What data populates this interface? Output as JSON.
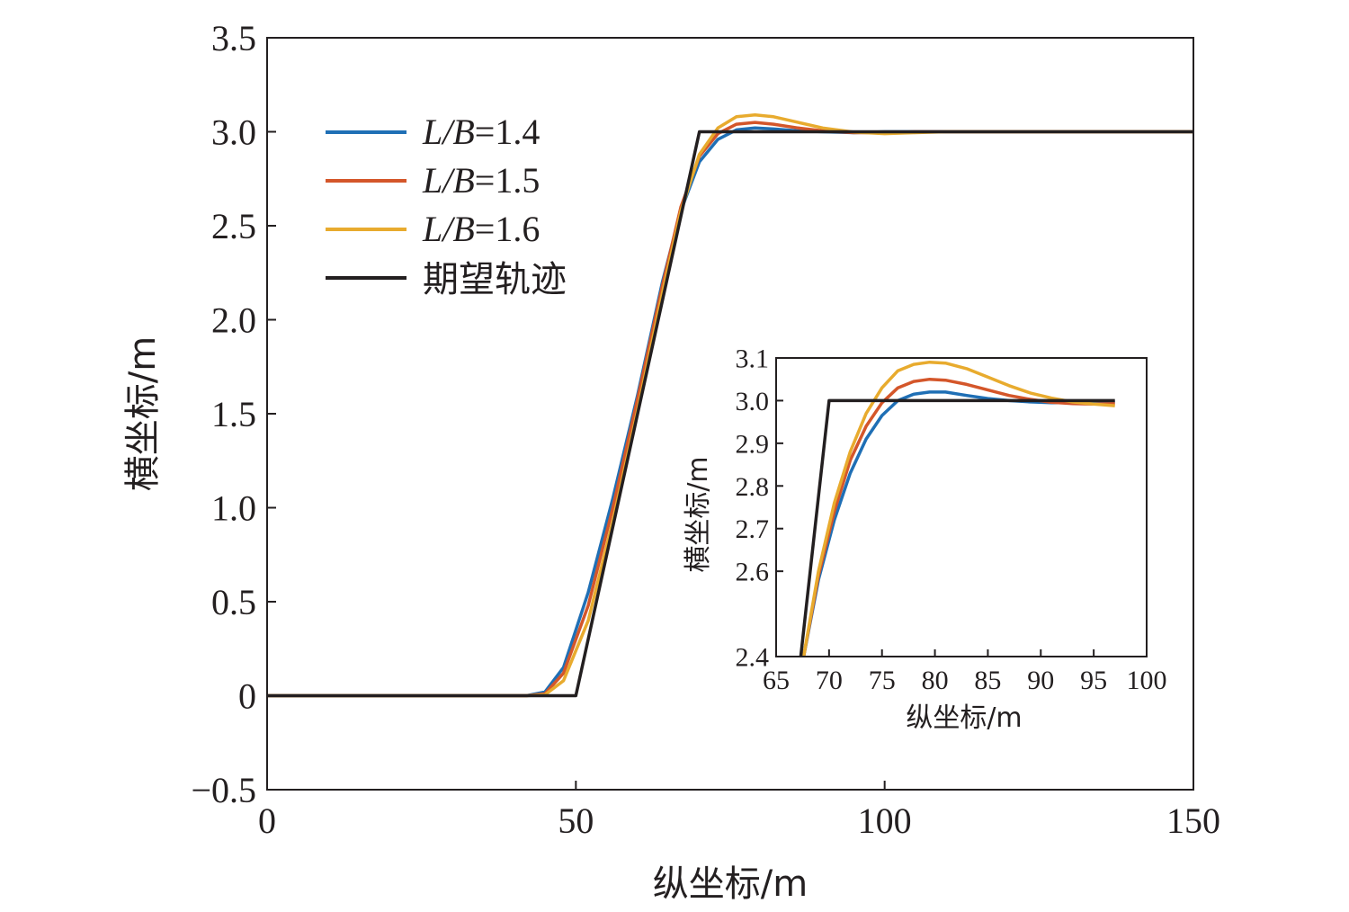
{
  "colors": {
    "lb14": "#1f6fb5",
    "lb15": "#d4562a",
    "lb16": "#e8ab2e",
    "desired": "#231f20",
    "axis": "#231f20"
  },
  "chart_data": [
    {
      "type": "line",
      "title": "",
      "xlabel": "纵坐标/m",
      "ylabel": "横坐标/m",
      "xlim": [
        0,
        150
      ],
      "ylim": [
        -0.5,
        3.5
      ],
      "xticks": [
        "0",
        "50",
        "100",
        "150"
      ],
      "yticks": [
        "−0.5",
        "0",
        "0.5",
        "1.0",
        "1.5",
        "2.0",
        "2.5",
        "3.0",
        "3.5"
      ],
      "grid": false,
      "legend_position": "top-left",
      "legend": [
        {
          "prefix": "L/B",
          "value": "=1.4"
        },
        {
          "prefix": "L/B",
          "value": "=1.5"
        },
        {
          "prefix": "L/B",
          "value": "=1.6"
        },
        {
          "text": "期望轨迹"
        }
      ],
      "series": [
        {
          "name": "L/B=1.4",
          "x": [
            0,
            42,
            45,
            48,
            52,
            56,
            60,
            64,
            67,
            70,
            73,
            76,
            79,
            82,
            86,
            90,
            95,
            100,
            105,
            110,
            130,
            150
          ],
          "y": [
            0,
            0,
            0.02,
            0.15,
            0.55,
            1.05,
            1.6,
            2.2,
            2.58,
            2.84,
            2.96,
            3.01,
            3.02,
            3.015,
            3.005,
            3.0,
            2.995,
            3.0,
            3.0,
            3.0,
            3.0,
            3.0
          ]
        },
        {
          "name": "L/B=1.5",
          "x": [
            0,
            42,
            45,
            48,
            52,
            56,
            60,
            64,
            67,
            70,
            73,
            76,
            79,
            82,
            86,
            90,
            95,
            100,
            105,
            110,
            130,
            150
          ],
          "y": [
            0,
            0,
            0.01,
            0.12,
            0.48,
            1.0,
            1.58,
            2.18,
            2.6,
            2.87,
            2.99,
            3.04,
            3.05,
            3.04,
            3.02,
            3.005,
            2.995,
            2.995,
            3.0,
            3.0,
            3.0,
            3.0
          ]
        },
        {
          "name": "L/B=1.6",
          "x": [
            0,
            42,
            45,
            48,
            52,
            56,
            60,
            64,
            67,
            70,
            73,
            76,
            79,
            82,
            86,
            90,
            95,
            100,
            105,
            110,
            130,
            150
          ],
          "y": [
            0,
            0,
            0.005,
            0.08,
            0.4,
            0.93,
            1.52,
            2.14,
            2.58,
            2.88,
            3.02,
            3.08,
            3.09,
            3.08,
            3.05,
            3.02,
            2.998,
            2.99,
            2.995,
            3.0,
            3.0,
            3.0
          ]
        },
        {
          "name": "期望轨迹",
          "x": [
            0,
            50,
            70,
            150
          ],
          "y": [
            0,
            0,
            3.0,
            3.0
          ]
        }
      ]
    },
    {
      "type": "line",
      "title": "",
      "xlabel": "纵坐标/m",
      "ylabel": "横坐标/m",
      "xlim": [
        65,
        100
      ],
      "ylim": [
        2.4,
        3.1
      ],
      "xticks": [
        "65",
        "70",
        "75",
        "80",
        "85",
        "90",
        "95",
        "100"
      ],
      "yticks": [
        "2.4",
        "2.6",
        "2.7",
        "2.8",
        "2.9",
        "3.0",
        "3.1"
      ],
      "grid": false,
      "series": [
        {
          "name": "L/B=1.4",
          "x": [
            67.6,
            69,
            70.5,
            72,
            73.5,
            75,
            76.5,
            78,
            79.5,
            81,
            83,
            85,
            87,
            89,
            91,
            93,
            95,
            97
          ],
          "y": [
            2.4,
            2.58,
            2.72,
            2.83,
            2.91,
            2.965,
            3.0,
            3.015,
            3.02,
            3.02,
            3.012,
            3.005,
            3.0,
            2.997,
            2.995,
            2.995,
            2.996,
            2.997
          ]
        },
        {
          "name": "L/B=1.5",
          "x": [
            67.6,
            69,
            70.5,
            72,
            73.5,
            75,
            76.5,
            78,
            79.5,
            81,
            83,
            85,
            87,
            89,
            91,
            93,
            95,
            97
          ],
          "y": [
            2.4,
            2.59,
            2.74,
            2.86,
            2.94,
            2.995,
            3.03,
            3.045,
            3.05,
            3.048,
            3.038,
            3.025,
            3.012,
            3.003,
            2.996,
            2.993,
            2.992,
            2.993
          ]
        },
        {
          "name": "L/B=1.6",
          "x": [
            67.6,
            69,
            70.5,
            72,
            73.5,
            75,
            76.5,
            78,
            79.5,
            81,
            83,
            85,
            87,
            89,
            91,
            93,
            95,
            97
          ],
          "y": [
            2.4,
            2.6,
            2.76,
            2.88,
            2.97,
            3.03,
            3.07,
            3.085,
            3.09,
            3.088,
            3.075,
            3.055,
            3.035,
            3.018,
            3.006,
            2.997,
            2.992,
            2.988
          ]
        },
        {
          "name": "期望轨迹",
          "x": [
            67.33,
            70,
            97
          ],
          "y": [
            2.4,
            3.0,
            3.0
          ]
        }
      ]
    }
  ]
}
